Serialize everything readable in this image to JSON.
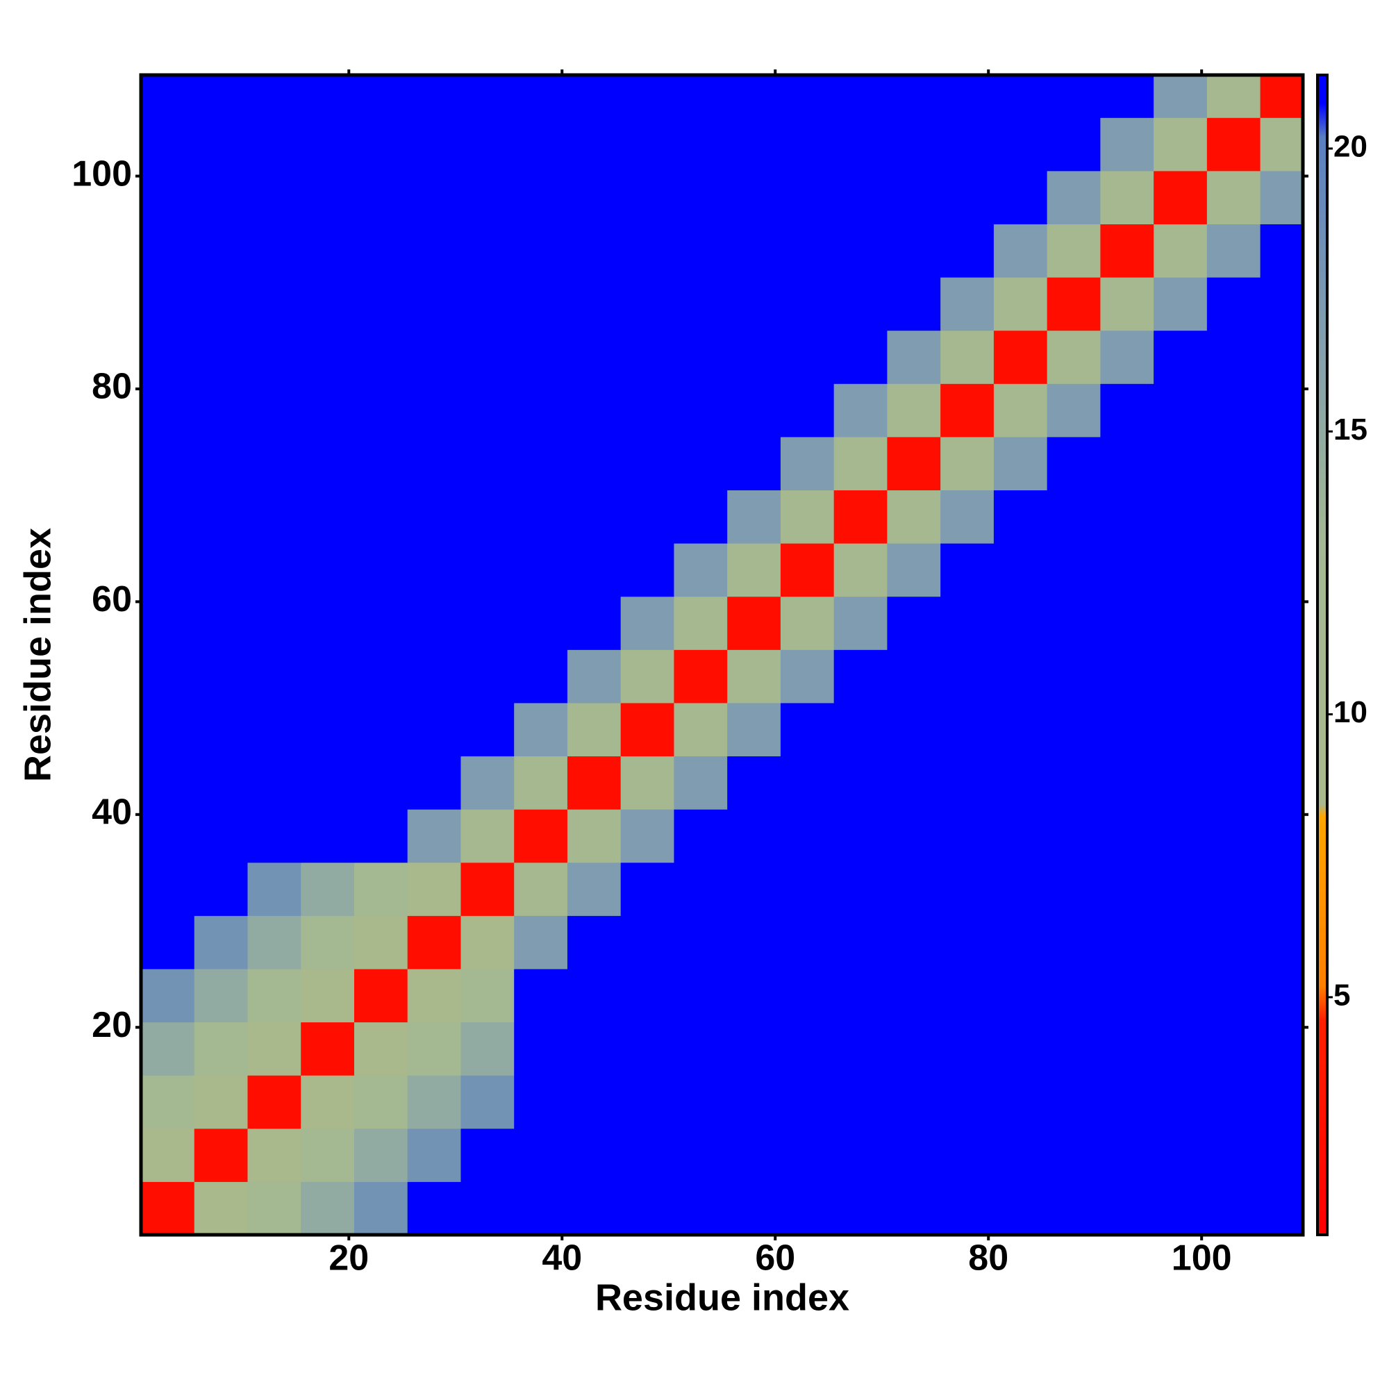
{
  "chart_data": {
    "type": "heatmap",
    "x_label": "Residue index",
    "y_label": "Residue index",
    "xlim": [
      0.5,
      109.5
    ],
    "ylim": [
      0.5,
      109.5
    ],
    "xticks": [
      20,
      40,
      60,
      80,
      100
    ],
    "yticks": [
      20,
      40,
      60,
      80,
      100
    ],
    "zlim": [
      0.8,
      21.3
    ],
    "zticks": [
      5,
      10,
      15,
      20
    ],
    "colorscale": [
      [
        0.8,
        "#ff0000"
      ],
      [
        4.6,
        "#ff2000"
      ],
      [
        5.2,
        "#ff8000"
      ],
      [
        8.2,
        "#ffa500"
      ],
      [
        8.4,
        "#a9b98c"
      ],
      [
        13,
        "#a3b893"
      ],
      [
        17,
        "#7f9cb0"
      ],
      [
        20.2,
        "#5a7fc0"
      ],
      [
        20.8,
        "#0000ff"
      ],
      [
        21.3,
        "#0000ff"
      ]
    ],
    "xbins": [
      0.5,
      5.5,
      10.5,
      15.5,
      20.5,
      25.5,
      30.5,
      35.5,
      40.5,
      45.5,
      50.5,
      55.5,
      60.5,
      65.5,
      70.5,
      75.5,
      80.5,
      85.5,
      90.5,
      95.5,
      100.5,
      105.5,
      109.5
    ],
    "ybins": [
      0.5,
      5.5,
      10.5,
      15.5,
      20.5,
      25.5,
      30.5,
      35.5,
      40.5,
      45.5,
      50.5,
      55.5,
      60.5,
      65.5,
      70.5,
      75.5,
      80.5,
      85.5,
      90.5,
      95.5,
      100.5,
      105.5,
      109.5
    ],
    "z": [
      [
        2.5,
        8.5,
        12,
        15,
        18,
        21,
        21,
        21,
        21,
        21,
        21,
        21,
        21,
        21,
        21,
        21,
        21,
        21,
        21,
        21,
        21,
        21
      ],
      [
        8.5,
        2.5,
        8.5,
        12,
        15,
        18,
        21,
        21,
        21,
        21,
        21,
        21,
        21,
        21,
        21,
        21,
        21,
        21,
        21,
        21,
        21,
        21
      ],
      [
        12,
        8.5,
        2.5,
        8.5,
        12,
        15,
        18,
        21,
        21,
        21,
        21,
        21,
        21,
        21,
        21,
        21,
        21,
        21,
        21,
        21,
        21,
        21
      ],
      [
        15,
        12,
        8.5,
        2.5,
        8.5,
        12,
        15,
        21,
        21,
        21,
        21,
        21,
        21,
        21,
        21,
        21,
        21,
        21,
        21,
        21,
        21,
        21
      ],
      [
        18,
        15,
        12,
        8.5,
        2.5,
        8.5,
        12,
        21,
        21,
        21,
        21,
        21,
        21,
        21,
        21,
        21,
        21,
        21,
        21,
        21,
        21,
        21
      ],
      [
        21,
        18,
        15,
        12,
        8.5,
        2.5,
        8.5,
        17,
        21,
        21,
        21,
        21,
        21,
        21,
        21,
        21,
        21,
        21,
        21,
        21,
        21,
        21
      ],
      [
        21,
        21,
        18,
        15,
        12,
        8.5,
        2.5,
        11,
        17,
        21,
        21,
        21,
        21,
        21,
        21,
        21,
        21,
        21,
        21,
        21,
        21,
        21
      ],
      [
        21,
        21,
        21,
        21,
        21,
        17,
        11,
        2.5,
        11,
        17,
        21,
        21,
        21,
        21,
        21,
        21,
        21,
        21,
        21,
        21,
        21,
        21
      ],
      [
        21,
        21,
        21,
        21,
        21,
        21,
        17,
        11,
        2.5,
        11,
        17,
        21,
        21,
        21,
        21,
        21,
        21,
        21,
        21,
        21,
        21,
        21
      ],
      [
        21,
        21,
        21,
        21,
        21,
        21,
        21,
        17,
        11,
        2.5,
        11,
        17,
        21,
        21,
        21,
        21,
        21,
        21,
        21,
        21,
        21,
        21
      ],
      [
        21,
        21,
        21,
        21,
        21,
        21,
        21,
        21,
        17,
        11,
        2.5,
        11,
        17,
        21,
        21,
        21,
        21,
        21,
        21,
        21,
        21,
        21
      ],
      [
        21,
        21,
        21,
        21,
        21,
        21,
        21,
        21,
        21,
        17,
        11,
        2.5,
        11,
        17,
        21,
        21,
        21,
        21,
        21,
        21,
        21,
        21
      ],
      [
        21,
        21,
        21,
        21,
        21,
        21,
        21,
        21,
        21,
        21,
        17,
        11,
        2.5,
        11,
        17,
        21,
        21,
        21,
        21,
        21,
        21,
        21
      ],
      [
        21,
        21,
        21,
        21,
        21,
        21,
        21,
        21,
        21,
        21,
        21,
        17,
        11,
        2.5,
        11,
        17,
        21,
        21,
        21,
        21,
        21,
        21
      ],
      [
        21,
        21,
        21,
        21,
        21,
        21,
        21,
        21,
        21,
        21,
        21,
        21,
        17,
        11,
        2.5,
        11,
        17,
        21,
        21,
        21,
        21,
        21
      ],
      [
        21,
        21,
        21,
        21,
        21,
        21,
        21,
        21,
        21,
        21,
        21,
        21,
        21,
        17,
        11,
        2.5,
        11,
        17,
        21,
        21,
        21,
        21
      ],
      [
        21,
        21,
        21,
        21,
        21,
        21,
        21,
        21,
        21,
        21,
        21,
        21,
        21,
        21,
        17,
        11,
        2.5,
        11,
        17,
        21,
        21,
        21
      ],
      [
        21,
        21,
        21,
        21,
        21,
        21,
        21,
        21,
        21,
        21,
        21,
        21,
        21,
        21,
        21,
        17,
        11,
        2.5,
        11,
        17,
        21,
        21
      ],
      [
        21,
        21,
        21,
        21,
        21,
        21,
        21,
        21,
        21,
        21,
        21,
        21,
        21,
        21,
        21,
        21,
        17,
        11,
        2.5,
        11,
        17,
        21
      ],
      [
        21,
        21,
        21,
        21,
        21,
        21,
        21,
        21,
        21,
        21,
        21,
        21,
        21,
        21,
        21,
        21,
        21,
        17,
        11,
        2.5,
        11,
        17
      ],
      [
        21,
        21,
        21,
        21,
        21,
        21,
        21,
        21,
        21,
        21,
        21,
        21,
        21,
        21,
        21,
        21,
        21,
        21,
        17,
        11,
        2.5,
        11
      ],
      [
        21,
        21,
        21,
        21,
        21,
        21,
        21,
        21,
        21,
        21,
        21,
        21,
        21,
        21,
        21,
        21,
        21,
        21,
        21,
        17,
        11,
        2.5
      ]
    ]
  }
}
